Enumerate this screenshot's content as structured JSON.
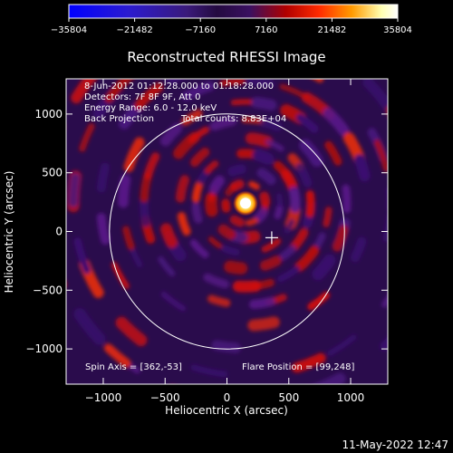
{
  "chart_data": {
    "type": "heatmap",
    "title": "Reconstructed RHESSI Image",
    "xlabel": "Heliocentric X (arcsec)",
    "ylabel": "Heliocentric Y (arcsec)",
    "xlim": [
      -1300,
      1300
    ],
    "ylim": [
      -1300,
      1300
    ],
    "xticks": [
      -1000,
      -500,
      0,
      500,
      1000
    ],
    "yticks": [
      -1000,
      -500,
      0,
      500,
      1000
    ],
    "xtick_labels": [
      "−1000",
      "−500",
      "0",
      "500",
      "1000"
    ],
    "ytick_labels": [
      "−1000",
      "−500",
      "0",
      "500",
      "1000"
    ],
    "colorbar": {
      "min": -35804,
      "max": 35804,
      "ticks": [
        -35804,
        -21482,
        -7160,
        7160,
        21482,
        35804
      ],
      "tick_labels": [
        "−35804",
        "−21482",
        "−7160",
        "7160",
        "21482",
        "35804"
      ],
      "colors": [
        "#0000ff",
        "#2b1bd0",
        "#3a1a7a",
        "#240a40",
        "#3a1060",
        "#b00000",
        "#ff2a00",
        "#ff9a00",
        "#ffffb0",
        "#ffffff"
      ]
    },
    "annotations": [
      "8-Jun-2012 01:12:28.000 to 01:18:28.000",
      "Detectors: 7F 8F 9F, Att 0",
      "Energy Range: 6.0 - 12.0 keV",
      "Back Projection",
      "Total counts: 8.83E+04"
    ],
    "spin_axis_label": "Spin Axis = [362,-53]",
    "flare_position_label": "Flare Position = [99,248]",
    "spin_axis": [
      362,
      -53
    ],
    "flare_position": [
      99,
      248
    ],
    "solar_disk_radius": 950,
    "source_center": [
      150,
      240
    ],
    "source_intensity": 35804
  },
  "footer": {
    "timestamp": "11-May-2022 12:47"
  }
}
